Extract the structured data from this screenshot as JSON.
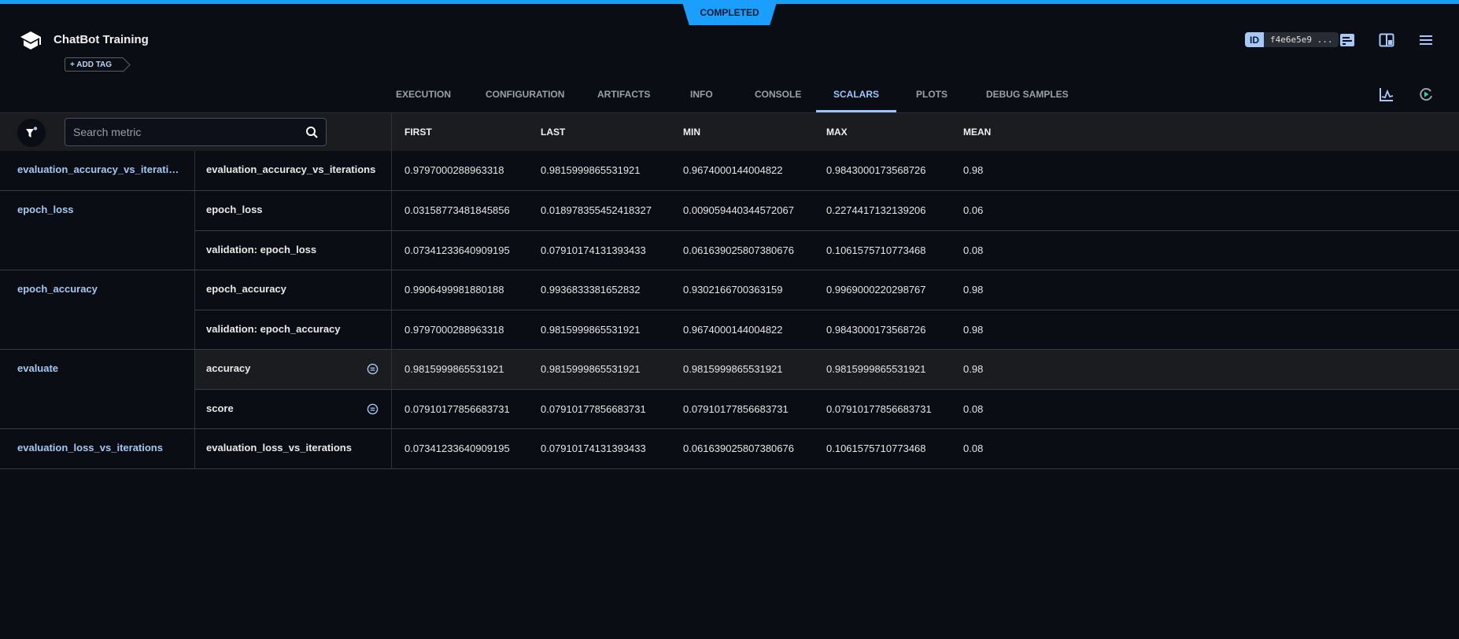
{
  "header": {
    "status": "COMPLETED",
    "title": "ChatBot Training",
    "add_tag": "+ ADD TAG",
    "id_label": "ID",
    "id_value": "f4e6e5e9 ..."
  },
  "colors": {
    "accent": "#1a9fff",
    "link": "#a7c7f2",
    "active_tab": "#9cc5ff"
  },
  "tabs": [
    {
      "label": "EXECUTION"
    },
    {
      "label": "CONFIGURATION"
    },
    {
      "label": "ARTIFACTS"
    },
    {
      "label": "INFO"
    },
    {
      "label": "CONSOLE"
    },
    {
      "label": "SCALARS",
      "active": true
    },
    {
      "label": "PLOTS"
    },
    {
      "label": "DEBUG SAMPLES"
    }
  ],
  "search": {
    "placeholder": "Search metric"
  },
  "columns": [
    "FIRST",
    "LAST",
    "MIN",
    "MAX",
    "MEAN"
  ],
  "groups": [
    {
      "name": "evaluation_accuracy_vs_iteratio...",
      "rows": [
        {
          "metric": "evaluation_accuracy_vs_iterations",
          "values": [
            "0.9797000288963318",
            "0.9815999865531921",
            "0.9674000144004822",
            "0.9843000173568726",
            "0.98"
          ]
        }
      ]
    },
    {
      "name": "epoch_loss",
      "rows": [
        {
          "metric": "epoch_loss",
          "values": [
            "0.03158773481845856",
            "0.018978355452418327",
            "0.009059440344572067",
            "0.2274417132139206",
            "0.06"
          ]
        },
        {
          "metric": "validation: epoch_loss",
          "values": [
            "0.07341233640909195",
            "0.07910174131393433",
            "0.061639025807380676",
            "0.1061575710773468",
            "0.08"
          ]
        }
      ]
    },
    {
      "name": "epoch_accuracy",
      "rows": [
        {
          "metric": "epoch_accuracy",
          "values": [
            "0.9906499981880188",
            "0.9936833381652832",
            "0.9302166700363159",
            "0.9969000220298767",
            "0.98"
          ]
        },
        {
          "metric": "validation: epoch_accuracy",
          "values": [
            "0.9797000288963318",
            "0.9815999865531921",
            "0.9674000144004822",
            "0.9843000173568726",
            "0.98"
          ]
        }
      ]
    },
    {
      "name": "evaluate",
      "rows": [
        {
          "metric": "accuracy",
          "icon": "equals-circle-icon",
          "highlighted": true,
          "values": [
            "0.9815999865531921",
            "0.9815999865531921",
            "0.9815999865531921",
            "0.9815999865531921",
            "0.98"
          ]
        },
        {
          "metric": "score",
          "icon": "equals-circle-icon",
          "values": [
            "0.07910177856683731",
            "0.07910177856683731",
            "0.07910177856683731",
            "0.07910177856683731",
            "0.08"
          ]
        }
      ]
    },
    {
      "name": "evaluation_loss_vs_iterations",
      "rows": [
        {
          "metric": "evaluation_loss_vs_iterations",
          "values": [
            "0.07341233640909195",
            "0.07910174131393433",
            "0.061639025807380676",
            "0.1061575710773468",
            "0.08"
          ]
        }
      ]
    }
  ]
}
